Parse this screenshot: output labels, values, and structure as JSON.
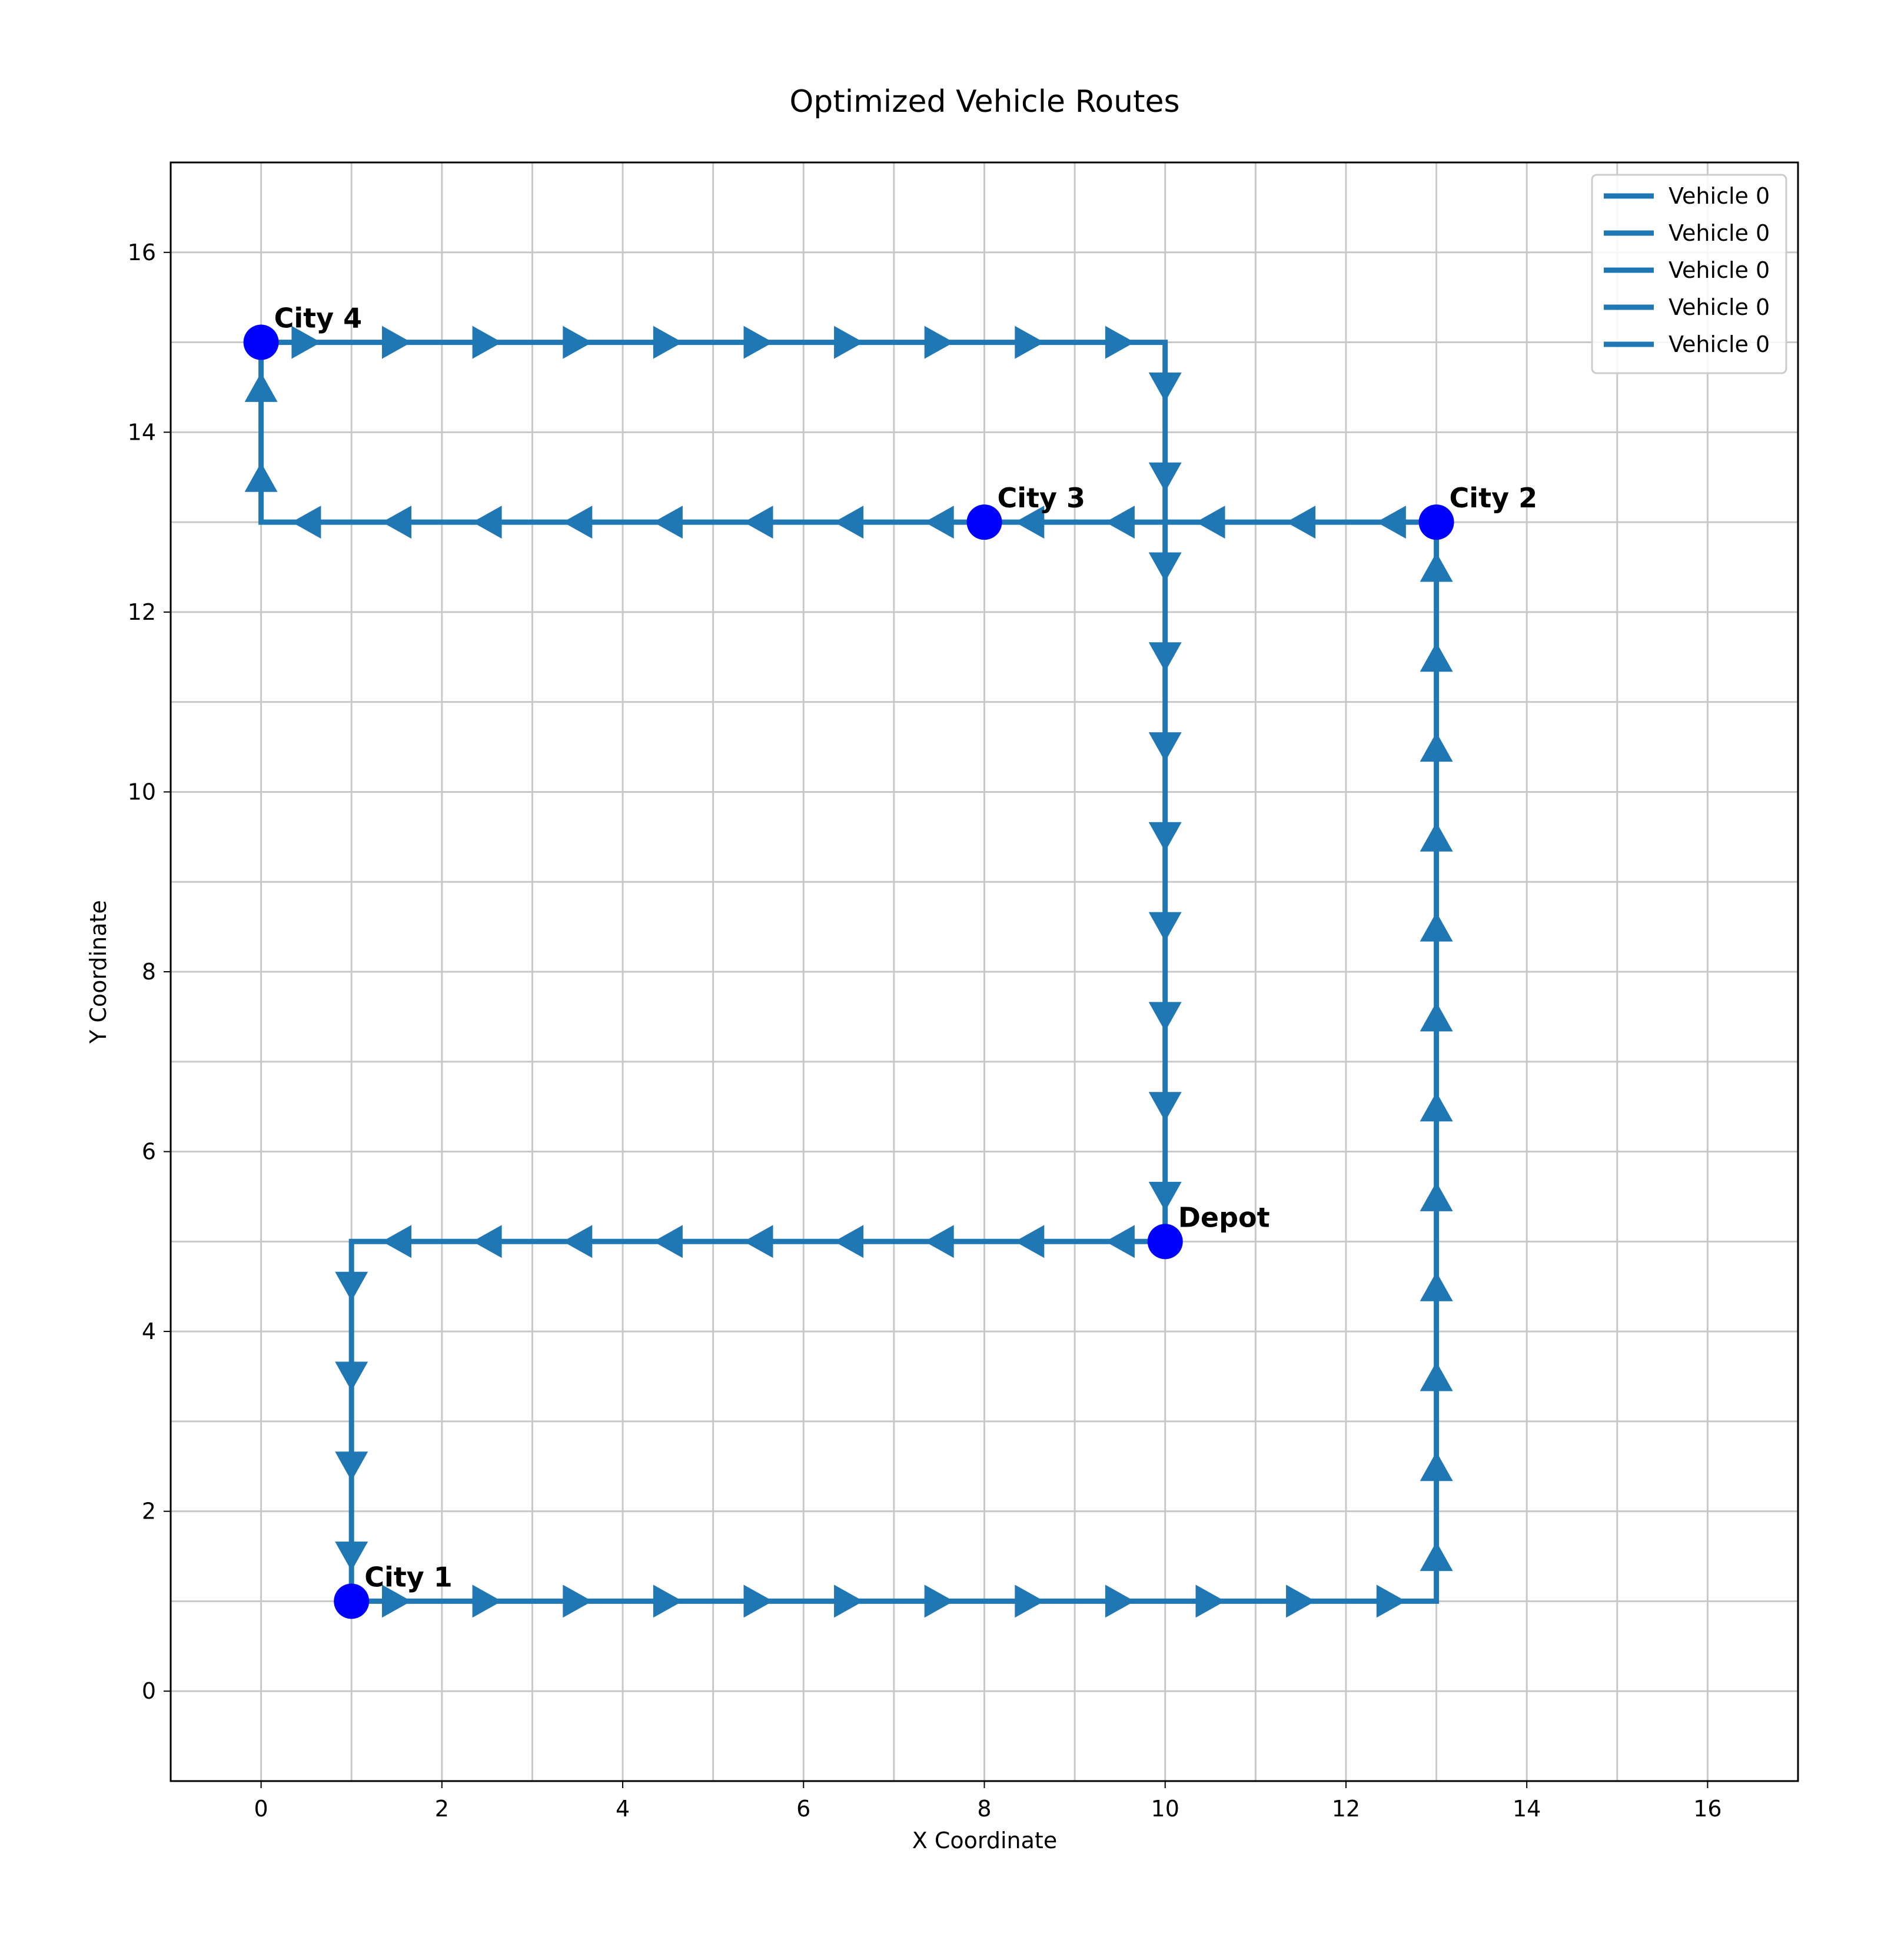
{
  "chart_data": {
    "type": "line",
    "title": "Optimized Vehicle Routes",
    "xlabel": "X Coordinate",
    "ylabel": "Y Coordinate",
    "xlim": [
      -1,
      17
    ],
    "ylim": [
      -1,
      17
    ],
    "xticks": [
      0,
      2,
      4,
      6,
      8,
      10,
      12,
      14,
      16
    ],
    "yticks": [
      0,
      2,
      4,
      6,
      8,
      10,
      12,
      14,
      16
    ],
    "grid": true,
    "legend": {
      "position": "top-right",
      "entries": [
        "Vehicle 0",
        "Vehicle 0",
        "Vehicle 0",
        "Vehicle 0",
        "Vehicle 0"
      ]
    },
    "series": [
      {
        "name": "Vehicle 0",
        "points": [
          [
            10,
            5
          ],
          [
            1,
            5
          ],
          [
            1,
            1
          ]
        ]
      },
      {
        "name": "Vehicle 0",
        "points": [
          [
            1,
            1
          ],
          [
            13,
            1
          ],
          [
            13,
            13
          ]
        ]
      },
      {
        "name": "Vehicle 0",
        "points": [
          [
            13,
            13
          ],
          [
            8,
            13
          ]
        ]
      },
      {
        "name": "Vehicle 0",
        "points": [
          [
            8,
            13
          ],
          [
            0,
            13
          ],
          [
            0,
            15
          ]
        ]
      },
      {
        "name": "Vehicle 0",
        "points": [
          [
            0,
            15
          ],
          [
            10,
            15
          ],
          [
            10,
            5
          ]
        ]
      }
    ],
    "locations": [
      {
        "label": "Depot",
        "x": 10,
        "y": 5
      },
      {
        "label": "City 1",
        "x": 1,
        "y": 1
      },
      {
        "label": "City 2",
        "x": 13,
        "y": 13
      },
      {
        "label": "City 3",
        "x": 8,
        "y": 13
      },
      {
        "label": "City 4",
        "x": 0,
        "y": 15
      }
    ],
    "colors": {
      "route": "#1f77b4",
      "location": "#0000ff",
      "grid": "#c8c8c8"
    }
  }
}
